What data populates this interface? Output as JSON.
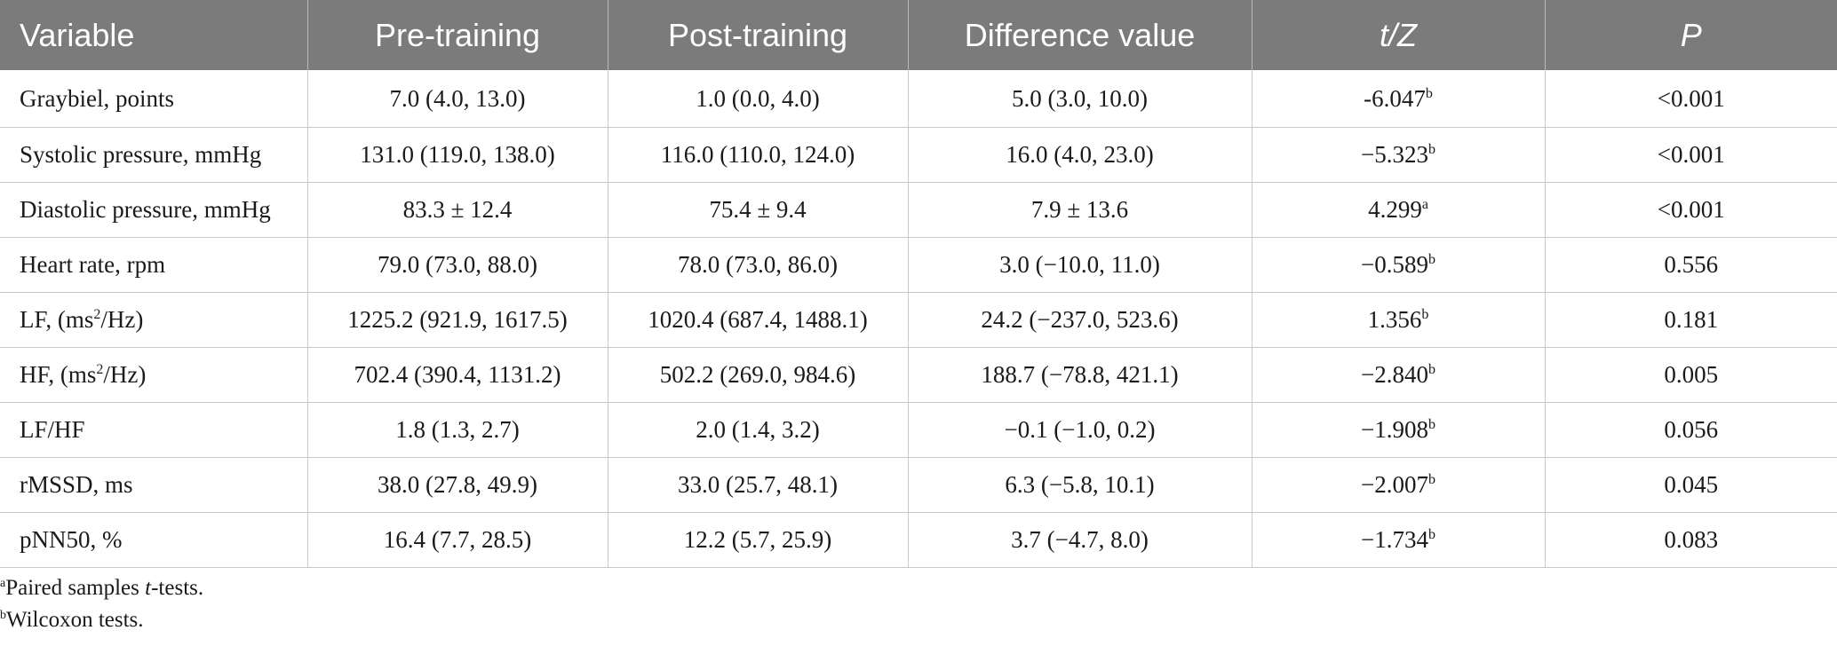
{
  "header": {
    "variable": "Variable",
    "pre": "Pre-training",
    "post": "Post-training",
    "diff": "Difference value",
    "tz": "t/Z",
    "p": "P"
  },
  "rows": [
    {
      "label": "Graybiel, points",
      "pre": "7.0 (4.0, 13.0)",
      "post": "1.0 (0.0, 4.0)",
      "diff": "5.0 (3.0, 10.0)",
      "tz": "-6.047",
      "tz_sup": "b",
      "p": "<0.001"
    },
    {
      "label": "Systolic pressure, mmHg",
      "pre": "131.0 (119.0, 138.0)",
      "post": "116.0 (110.0, 124.0)",
      "diff": "16.0 (4.0, 23.0)",
      "tz": "−5.323",
      "tz_sup": "b",
      "p": "<0.001"
    },
    {
      "label": "Diastolic pressure, mmHg",
      "pre": "83.3 ± 12.4",
      "post": "75.4 ± 9.4",
      "diff": "7.9 ± 13.6",
      "tz": "4.299",
      "tz_sup": "a",
      "p": "<0.001"
    },
    {
      "label": "Heart rate, rpm",
      "pre": "79.0 (73.0, 88.0)",
      "post": "78.0 (73.0, 86.0)",
      "diff": "3.0 (−10.0, 11.0)",
      "tz": "−0.589",
      "tz_sup": "b",
      "p": "0.556"
    },
    {
      "label_pre": "LF, (ms",
      "label_sup": "2",
      "label_post": "/Hz)",
      "pre": "1225.2 (921.9, 1617.5)",
      "post": "1020.4 (687.4, 1488.1)",
      "diff": "24.2 (−237.0, 523.6)",
      "tz": "1.356",
      "tz_sup": "b",
      "p": "0.181"
    },
    {
      "label_pre": "HF, (ms",
      "label_sup": "2",
      "label_post": "/Hz)",
      "pre": "702.4 (390.4, 1131.2)",
      "post": "502.2 (269.0, 984.6)",
      "diff": "188.7 (−78.8, 421.1)",
      "tz": "−2.840",
      "tz_sup": "b",
      "p": "0.005"
    },
    {
      "label": "LF/HF",
      "pre": "1.8 (1.3, 2.7)",
      "post": "2.0 (1.4, 3.2)",
      "diff": "−0.1 (−1.0, 0.2)",
      "tz": "−1.908",
      "tz_sup": "b",
      "p": "0.056"
    },
    {
      "label": "rMSSD, ms",
      "pre": "38.0 (27.8, 49.9)",
      "post": "33.0 (25.7, 48.1)",
      "diff": "6.3 (−5.8, 10.1)",
      "tz": "−2.007",
      "tz_sup": "b",
      "p": "0.045"
    },
    {
      "label": "pNN50, %",
      "pre": "16.4 (7.7, 28.5)",
      "post": "12.2 (5.7, 25.9)",
      "diff": "3.7 (−4.7, 8.0)",
      "tz": "−1.734",
      "tz_sup": "b",
      "p": "0.083"
    }
  ],
  "footnotes": [
    {
      "mark": "a",
      "text_before": "Paired samples ",
      "text_italic": "t",
      "text_after": "-tests."
    },
    {
      "mark": "b",
      "text_before": "Wilcoxon tests.",
      "text_italic": "",
      "text_after": ""
    }
  ],
  "colors": {
    "header_bg": "#7b7b7b",
    "header_text": "#ffffff",
    "grid_line": "#c9c9c9"
  }
}
